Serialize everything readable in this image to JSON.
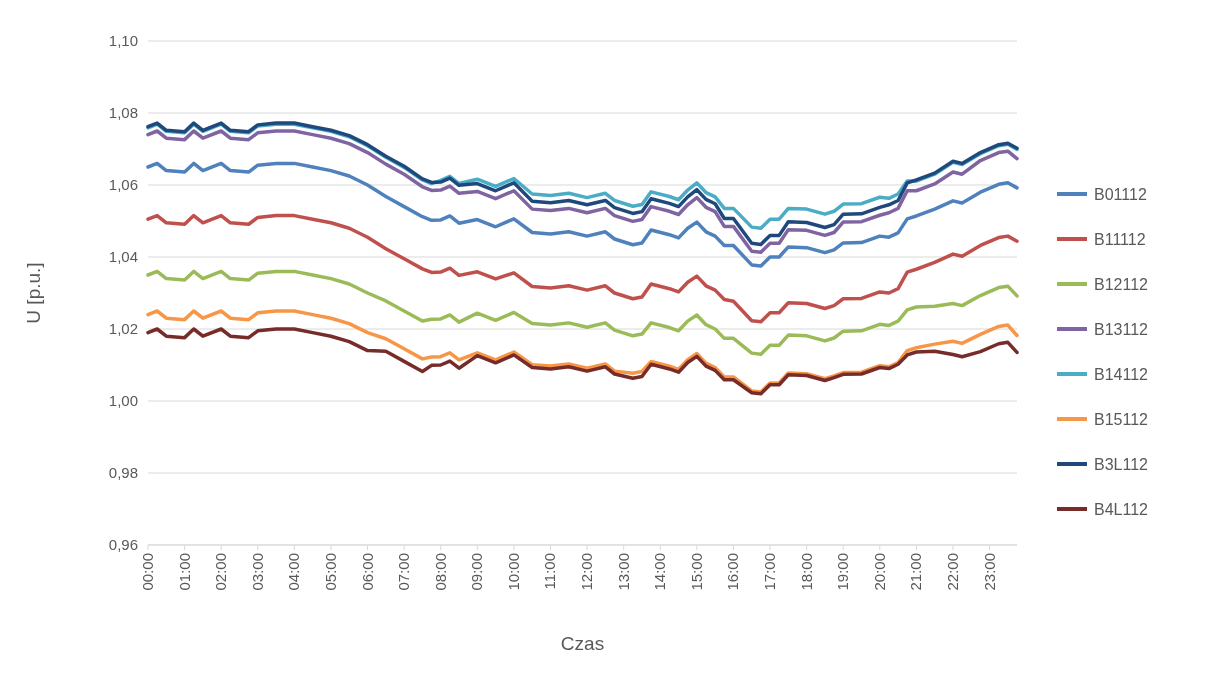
{
  "chart_data": {
    "type": "line",
    "xlabel": "Czas",
    "ylabel": "U [p.u.]",
    "x": [
      0,
      0.25,
      0.5,
      1,
      1.25,
      1.5,
      2,
      2.25,
      2.75,
      3,
      3.5,
      4,
      4.5,
      5,
      5.5,
      6,
      6.5,
      7,
      7.5,
      7.75,
      8,
      8.25,
      8.5,
      9,
      9.5,
      10,
      10.5,
      11,
      11.5,
      12,
      12.5,
      12.75,
      13.25,
      13.5,
      13.75,
      14.25,
      14.5,
      14.75,
      15,
      15.25,
      15.5,
      15.75,
      16,
      16.5,
      16.75,
      17,
      17.25,
      17.5,
      18,
      18.5,
      18.75,
      19,
      19.5,
      20,
      20.25,
      20.5,
      20.75,
      21,
      21.5,
      22,
      22.25,
      22.75,
      23.25,
      23.5,
      23.75
    ],
    "xlim": [
      0,
      23.75
    ],
    "xticks": [
      {
        "value": 0,
        "label": "00:00"
      },
      {
        "value": 1,
        "label": "01:00"
      },
      {
        "value": 2,
        "label": "02:00"
      },
      {
        "value": 3,
        "label": "03:00"
      },
      {
        "value": 4,
        "label": "04:00"
      },
      {
        "value": 5,
        "label": "05:00"
      },
      {
        "value": 6,
        "label": "06:00"
      },
      {
        "value": 7,
        "label": "07:00"
      },
      {
        "value": 8,
        "label": "08:00"
      },
      {
        "value": 9,
        "label": "09:00"
      },
      {
        "value": 10,
        "label": "10:00"
      },
      {
        "value": 11,
        "label": "11:00"
      },
      {
        "value": 12,
        "label": "12:00"
      },
      {
        "value": 13,
        "label": "13:00"
      },
      {
        "value": 14,
        "label": "14:00"
      },
      {
        "value": 15,
        "label": "15:00"
      },
      {
        "value": 16,
        "label": "16:00"
      },
      {
        "value": 17,
        "label": "17:00"
      },
      {
        "value": 18,
        "label": "18:00"
      },
      {
        "value": 19,
        "label": "19:00"
      },
      {
        "value": 20,
        "label": "20:00"
      },
      {
        "value": 21,
        "label": "21:00"
      },
      {
        "value": 22,
        "label": "22:00"
      },
      {
        "value": 23,
        "label": "23:00"
      }
    ],
    "ylim": [
      0.96,
      1.1
    ],
    "yticks": [
      {
        "value": 0.96,
        "label": "0,96"
      },
      {
        "value": 0.98,
        "label": "0,98"
      },
      {
        "value": 1,
        "label": "1,00"
      },
      {
        "value": 1.02,
        "label": "1,02"
      },
      {
        "value": 1.04,
        "label": "1,04"
      },
      {
        "value": 1.06,
        "label": "1,06"
      },
      {
        "value": 1.08,
        "label": "1,08"
      },
      {
        "value": 1.1,
        "label": "1,10"
      }
    ],
    "grid": "y",
    "legend": "right",
    "marker": "none",
    "line_style": "solid",
    "series": [
      {
        "name": "B01112",
        "color": "#4f81bd",
        "values": [
          1.065,
          1.066,
          1.064,
          1.0636,
          1.066,
          1.064,
          1.066,
          1.064,
          1.0636,
          1.0655,
          1.066,
          1.066,
          1.065,
          1.064,
          1.0625,
          1.06,
          1.0568,
          1.054,
          1.0512,
          1.0502,
          1.0503,
          1.0514,
          1.0494,
          1.0504,
          1.0484,
          1.0506,
          1.0468,
          1.0464,
          1.047,
          1.0458,
          1.047,
          1.045,
          1.0434,
          1.0439,
          1.0475,
          1.0462,
          1.0453,
          1.048,
          1.0497,
          1.047,
          1.0458,
          1.0432,
          1.0432,
          1.0378,
          1.0375,
          1.04,
          1.04,
          1.0428,
          1.0426,
          1.0412,
          1.042,
          1.0439,
          1.044,
          1.0458,
          1.0455,
          1.0467,
          1.0506,
          1.0514,
          1.0533,
          1.0556,
          1.055,
          1.058,
          1.0602,
          1.0606,
          1.0592
        ]
      },
      {
        "name": "B11112",
        "color": "#c0504d",
        "values": [
          1.0505,
          1.0515,
          1.0495,
          1.0491,
          1.0515,
          1.0495,
          1.0515,
          1.0495,
          1.0491,
          1.051,
          1.0515,
          1.0515,
          1.0505,
          1.0495,
          1.048,
          1.0455,
          1.0423,
          1.0395,
          1.0367,
          1.0357,
          1.0358,
          1.0369,
          1.0349,
          1.0359,
          1.0339,
          1.0356,
          1.0318,
          1.0314,
          1.032,
          1.0308,
          1.032,
          1.03,
          1.0284,
          1.0289,
          1.0325,
          1.0312,
          1.0303,
          1.033,
          1.0347,
          1.032,
          1.0308,
          1.0282,
          1.0277,
          1.0223,
          1.022,
          1.0245,
          1.0245,
          1.0273,
          1.0271,
          1.0257,
          1.0265,
          1.0284,
          1.0285,
          1.0303,
          1.03,
          1.0312,
          1.0358,
          1.0366,
          1.0385,
          1.0408,
          1.0402,
          1.0432,
          1.0454,
          1.0458,
          1.0444
        ]
      },
      {
        "name": "B12112",
        "color": "#9bbb59",
        "values": [
          1.035,
          1.036,
          1.034,
          1.0336,
          1.036,
          1.034,
          1.036,
          1.034,
          1.0336,
          1.0355,
          1.036,
          1.036,
          1.035,
          1.034,
          1.0325,
          1.03,
          1.0278,
          1.025,
          1.0222,
          1.0227,
          1.0228,
          1.0239,
          1.0219,
          1.0244,
          1.0224,
          1.0246,
          1.0215,
          1.0211,
          1.0217,
          1.0205,
          1.0217,
          1.0197,
          1.0181,
          1.0186,
          1.0217,
          1.0204,
          1.0195,
          1.0222,
          1.0239,
          1.0212,
          1.02,
          1.0174,
          1.0174,
          1.0133,
          1.013,
          1.0155,
          1.0155,
          1.0183,
          1.0181,
          1.0167,
          1.0175,
          1.0194,
          1.0195,
          1.0213,
          1.021,
          1.0222,
          1.0253,
          1.0261,
          1.0263,
          1.0271,
          1.0265,
          1.0293,
          1.0315,
          1.0319,
          1.0292
        ]
      },
      {
        "name": "B13112",
        "color": "#8064a2",
        "values": [
          1.074,
          1.075,
          1.073,
          1.0726,
          1.075,
          1.073,
          1.075,
          1.073,
          1.0726,
          1.0745,
          1.075,
          1.075,
          1.074,
          1.073,
          1.0715,
          1.069,
          1.0658,
          1.063,
          1.0595,
          1.0585,
          1.0586,
          1.0597,
          1.0577,
          1.0582,
          1.0562,
          1.0584,
          1.0533,
          1.0529,
          1.0535,
          1.0523,
          1.0535,
          1.0515,
          1.0499,
          1.0504,
          1.054,
          1.0527,
          1.0518,
          1.0545,
          1.0565,
          1.0538,
          1.0526,
          1.0485,
          1.0485,
          1.0416,
          1.0413,
          1.0438,
          1.0438,
          1.0476,
          1.0474,
          1.046,
          1.0468,
          1.0497,
          1.0498,
          1.0516,
          1.0523,
          1.0535,
          1.0584,
          1.0584,
          1.0603,
          1.0636,
          1.063,
          1.0668,
          1.069,
          1.0694,
          1.0673
        ]
      },
      {
        "name": "B14112",
        "color": "#4bacc6",
        "values": [
          1.0759,
          1.0769,
          1.0749,
          1.0745,
          1.0769,
          1.0749,
          1.0769,
          1.0749,
          1.0745,
          1.0764,
          1.0769,
          1.0769,
          1.0759,
          1.0749,
          1.0734,
          1.0709,
          1.0677,
          1.0649,
          1.0614,
          1.0604,
          1.0613,
          1.0624,
          1.0604,
          1.0616,
          1.0596,
          1.0618,
          1.0575,
          1.0571,
          1.0577,
          1.0565,
          1.0577,
          1.0557,
          1.0541,
          1.0546,
          1.0581,
          1.0568,
          1.0559,
          1.0586,
          1.0606,
          1.0579,
          1.0567,
          1.0535,
          1.0535,
          1.0483,
          1.048,
          1.0505,
          1.0505,
          1.0535,
          1.0533,
          1.0519,
          1.0527,
          1.0547,
          1.0548,
          1.0566,
          1.0563,
          1.0575,
          1.0611,
          1.0611,
          1.063,
          1.0663,
          1.0657,
          1.0687,
          1.0709,
          1.0713,
          1.0699
        ]
      },
      {
        "name": "B15112",
        "color": "#f79646",
        "values": [
          1.024,
          1.025,
          1.023,
          1.0226,
          1.025,
          1.023,
          1.025,
          1.023,
          1.0226,
          1.0245,
          1.025,
          1.025,
          1.024,
          1.023,
          1.0215,
          1.019,
          1.0173,
          1.0145,
          1.0117,
          1.0122,
          1.0123,
          1.0134,
          1.0114,
          1.0134,
          1.0114,
          1.0136,
          1.0101,
          1.0097,
          1.0103,
          1.0091,
          1.0103,
          1.0083,
          1.0077,
          1.0082,
          1.011,
          1.0097,
          1.0088,
          1.0115,
          1.0132,
          1.0105,
          1.0093,
          1.0067,
          1.0067,
          1.0028,
          1.0025,
          1.005,
          1.005,
          1.0078,
          1.0076,
          1.0062,
          1.007,
          1.0079,
          1.008,
          1.0098,
          1.0095,
          1.0107,
          1.014,
          1.0148,
          1.0158,
          1.0166,
          1.016,
          1.0185,
          1.0207,
          1.0211,
          1.0182
        ]
      },
      {
        "name": "B3L112",
        "color": "#1f497d",
        "values": [
          1.0762,
          1.0772,
          1.0752,
          1.0748,
          1.0772,
          1.0752,
          1.0772,
          1.0752,
          1.0748,
          1.0767,
          1.0772,
          1.0772,
          1.0762,
          1.0752,
          1.0737,
          1.0712,
          1.068,
          1.0652,
          1.0617,
          1.0607,
          1.0608,
          1.0619,
          1.0599,
          1.0604,
          1.0584,
          1.0606,
          1.0555,
          1.0551,
          1.0557,
          1.0545,
          1.0557,
          1.0537,
          1.0521,
          1.0526,
          1.0562,
          1.0549,
          1.054,
          1.0567,
          1.0587,
          1.056,
          1.0548,
          1.0507,
          1.0507,
          1.0438,
          1.0435,
          1.046,
          1.046,
          1.0498,
          1.0496,
          1.0482,
          1.049,
          1.0519,
          1.052,
          1.0538,
          1.0545,
          1.0557,
          1.0606,
          1.0614,
          1.0633,
          1.0666,
          1.066,
          1.069,
          1.0712,
          1.0716,
          1.0702
        ]
      },
      {
        "name": "B4L112",
        "color": "#772c2a",
        "values": [
          1.019,
          1.02,
          1.018,
          1.0176,
          1.02,
          1.018,
          1.02,
          1.018,
          1.0176,
          1.0195,
          1.02,
          1.02,
          1.019,
          1.018,
          1.0165,
          1.014,
          1.0138,
          1.011,
          1.0082,
          1.0099,
          1.01,
          1.0111,
          1.0091,
          1.0126,
          1.0106,
          1.0128,
          1.0093,
          1.0089,
          1.0095,
          1.0083,
          1.0095,
          1.0075,
          1.0063,
          1.0068,
          1.0102,
          1.0089,
          1.008,
          1.0107,
          1.0124,
          1.0097,
          1.0085,
          1.0059,
          1.0059,
          1.0023,
          1.002,
          1.0045,
          1.0045,
          1.0073,
          1.0071,
          1.0057,
          1.0065,
          1.0074,
          1.0075,
          1.0093,
          1.009,
          1.0102,
          1.0128,
          1.0136,
          1.0138,
          1.0129,
          1.0123,
          1.0137,
          1.0159,
          1.0163,
          1.0135
        ]
      }
    ]
  }
}
